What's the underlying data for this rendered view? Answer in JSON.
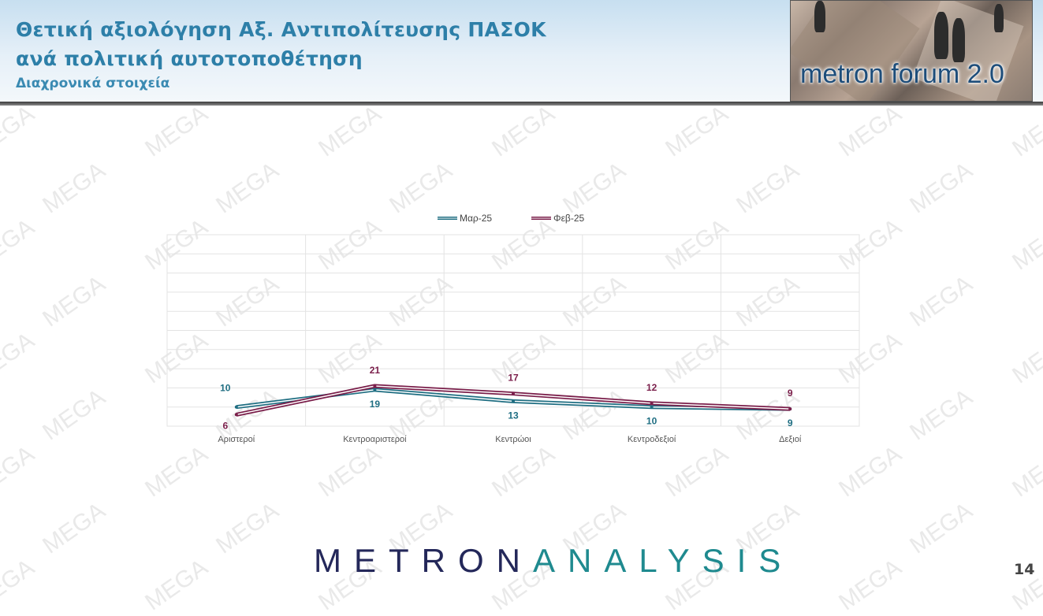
{
  "header": {
    "title_line1": "Θετική αξιολόγηση Αξ. Αντιπολίτευσης ΠΑΣΟΚ",
    "title_line2": "ανά πολιτική αυτοτοποθέτηση",
    "subtitle": "Διαχρονικά στοιχεία"
  },
  "logo": {
    "text": "metron forum 2.0"
  },
  "watermark_text": "MEGA",
  "footer": {
    "brand_part1": "METRON",
    "brand_part2": "ANALYSIS",
    "page_number": "14"
  },
  "colors": {
    "title": "#2d7fa8",
    "series_mar": "#1f6e82",
    "series_feb": "#7a1e4a",
    "grid": "#e3e3e3"
  },
  "chart_data": {
    "type": "line",
    "categories": [
      "Αριστεροί",
      "Κεντροαριστεροί",
      "Κεντρώοι",
      "Κεντροδεξιοί",
      "Δεξιοί"
    ],
    "series": [
      {
        "name": "Μαρ-25",
        "values": [
          10,
          19,
          13,
          10,
          9
        ],
        "color": "#1f6e82"
      },
      {
        "name": "Φεβ-25",
        "values": [
          6,
          21,
          17,
          12,
          9
        ],
        "color": "#7a1e4a"
      }
    ],
    "ylim": [
      0,
      100
    ],
    "grid": true,
    "legend": "top-center"
  }
}
